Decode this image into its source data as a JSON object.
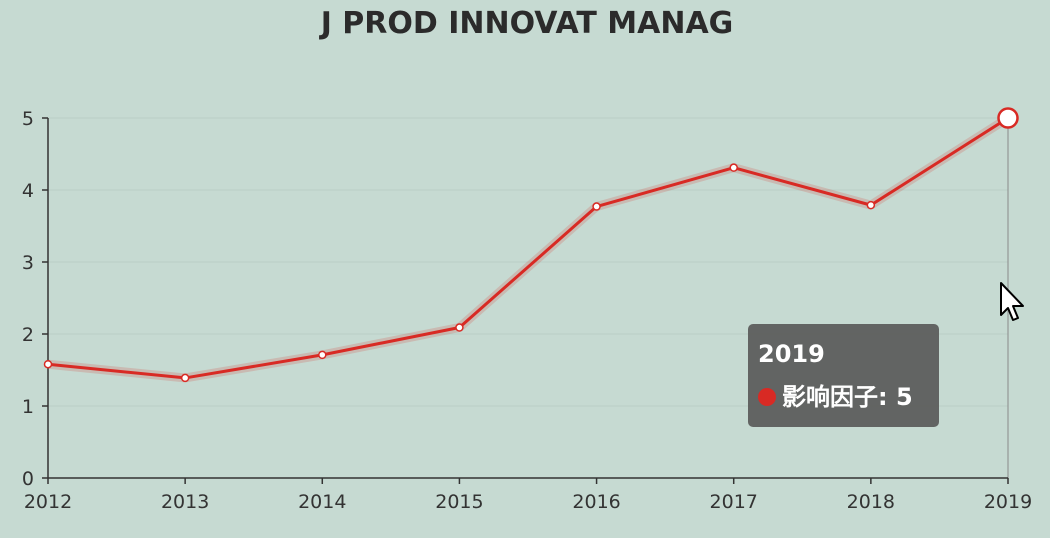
{
  "chart_data": {
    "type": "line",
    "title": "J PROD INNOVAT MANAG",
    "x": [
      "2012",
      "2013",
      "2014",
      "2015",
      "2016",
      "2017",
      "2018",
      "2019"
    ],
    "series": [
      {
        "name": "影响因子",
        "values": [
          1.58,
          1.39,
          1.71,
          2.09,
          3.77,
          4.31,
          3.79,
          5.0
        ],
        "color": "#d82a24"
      }
    ],
    "ylim": [
      0,
      5
    ],
    "yticks": [
      "0",
      "1",
      "2",
      "3",
      "4",
      "5"
    ],
    "grid": true,
    "highlight_index": 7
  },
  "tooltip": {
    "title": "2019",
    "series_label": "影响因子",
    "value": "5"
  }
}
